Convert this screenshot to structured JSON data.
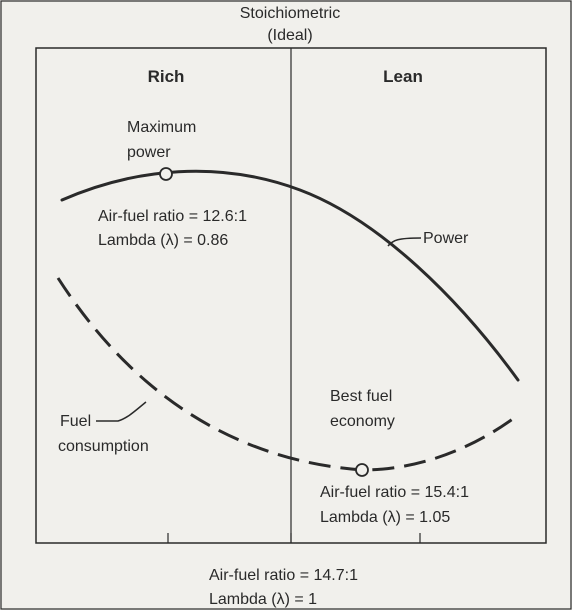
{
  "header": {
    "line1": "Stoichiometric",
    "line2": "(Ideal)"
  },
  "regions": {
    "rich": "Rich",
    "lean": "Lean"
  },
  "max_power": {
    "title_line1": "Maximum",
    "title_line2": "power",
    "afr": "Air-fuel ratio = 12.6:1",
    "lambda": "Lambda (λ) = 0.86"
  },
  "curves": {
    "power_label": "Power",
    "fuel_label_line1": "Fuel",
    "fuel_label_line2": "consumption"
  },
  "best_economy": {
    "title_line1": "Best fuel",
    "title_line2": "economy",
    "afr": "Air-fuel ratio = 15.4:1",
    "lambda": "Lambda (λ) = 1.05"
  },
  "footer": {
    "afr": "Air-fuel ratio = 14.7:1",
    "lambda": "Lambda (λ) = 1"
  },
  "colors": {
    "background": "#f1f0ec",
    "ink": "#2a2a2a"
  }
}
